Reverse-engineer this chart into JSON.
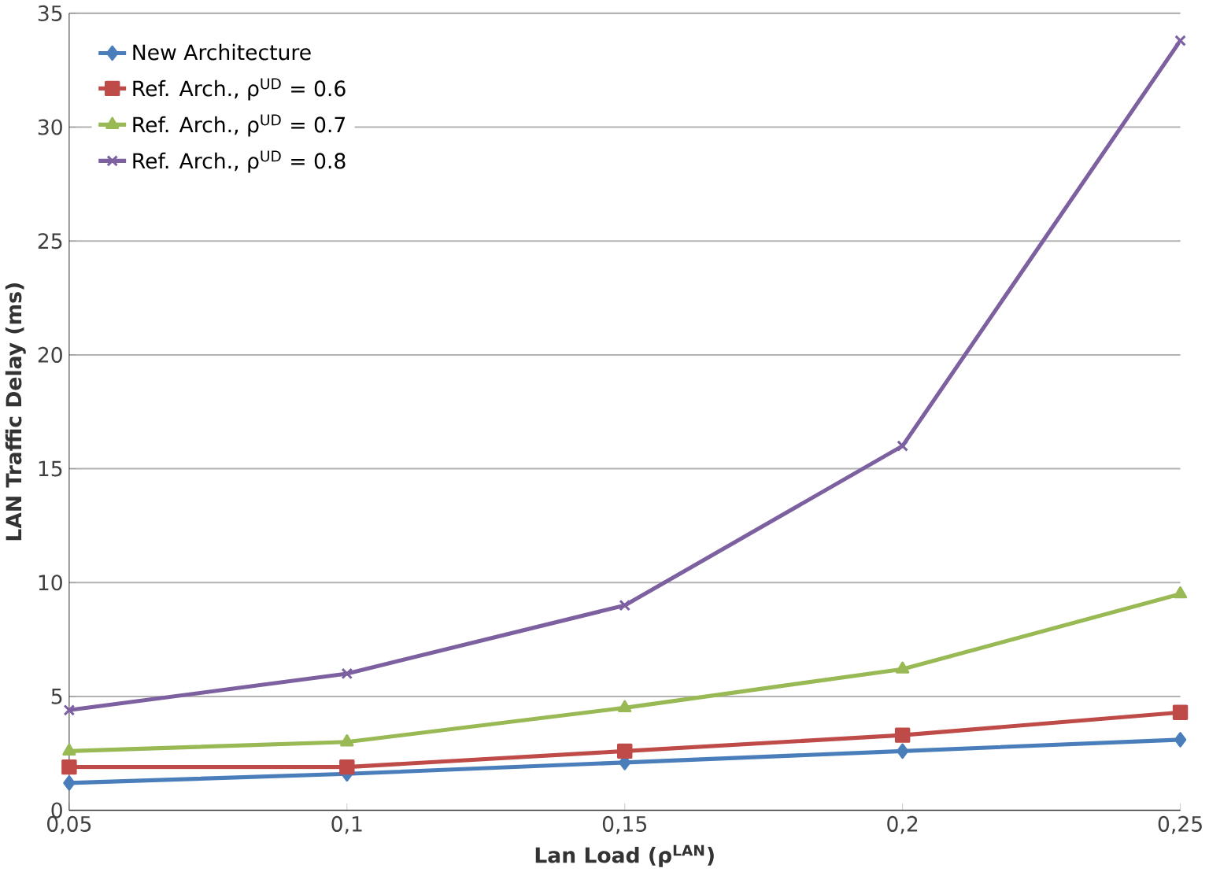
{
  "chart_data": {
    "type": "line",
    "xlabel": "Lan Load (ρ$^{LAN}$)",
    "ylabel": "LAN Traffic Delay (ms)",
    "x": [
      0.05,
      0.1,
      0.15,
      0.2,
      0.25
    ],
    "xlim": [
      0.05,
      0.25
    ],
    "xticks": [
      {
        "value": 0.05,
        "label": "0,05"
      },
      {
        "value": 0.1,
        "label": "0,1"
      },
      {
        "value": 0.15,
        "label": "0,15"
      },
      {
        "value": 0.2,
        "label": "0,2"
      },
      {
        "value": 0.25,
        "label": "0,25"
      }
    ],
    "ylim": [
      0,
      35
    ],
    "yticks": [
      0,
      5,
      10,
      15,
      20,
      25,
      30,
      35
    ],
    "grid": "y",
    "legend": "top left",
    "series": [
      {
        "name": "New Architecture",
        "color": "#4a7ebb",
        "marker": "diamond",
        "values": [
          1.2,
          1.6,
          2.1,
          2.6,
          3.1
        ]
      },
      {
        "name": "Ref. Arch., ρ$^{UD}$ = 0.6",
        "color": "#be4b48",
        "marker": "square",
        "values": [
          1.9,
          1.9,
          2.6,
          3.3,
          4.3
        ]
      },
      {
        "name": "Ref. Arch., ρ$^{UD}$ = 0.7",
        "color": "#98b954",
        "marker": "triangle",
        "values": [
          2.6,
          3.0,
          4.5,
          6.2,
          9.5
        ]
      },
      {
        "name": "Ref. Arch., ρ$^{UD}$ = 0.8",
        "color": "#7d60a0",
        "marker": "cross",
        "values": [
          4.4,
          6.0,
          9.0,
          16.0,
          33.8
        ]
      }
    ]
  }
}
